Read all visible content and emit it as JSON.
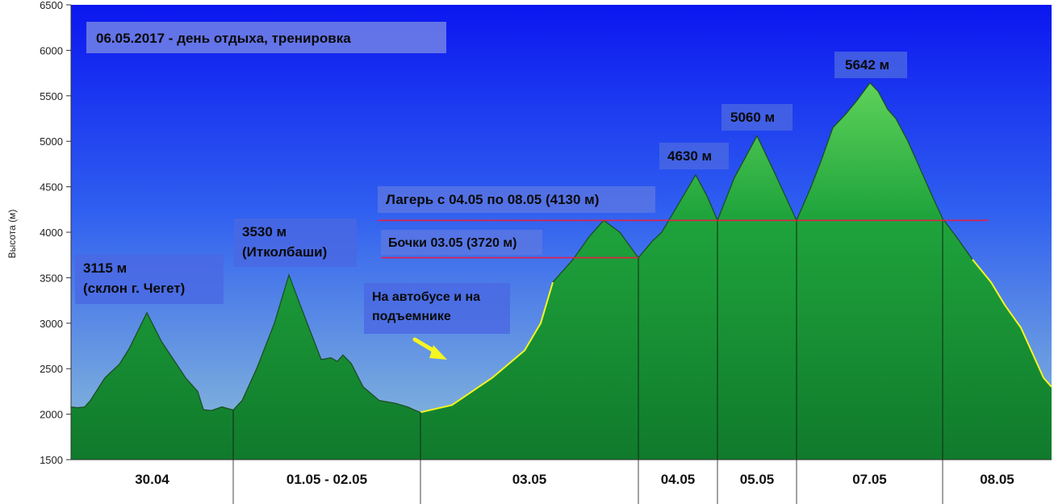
{
  "chart_data": {
    "type": "area",
    "title": "06.05.2017 - день отдыха, тренировка",
    "ylabel": "Высота (м)",
    "ylim": [
      1500,
      6500
    ],
    "yticks": [
      1500,
      2000,
      2500,
      3000,
      3500,
      4000,
      4500,
      5000,
      5500,
      6000,
      6500
    ],
    "grid": false,
    "segments": [
      {
        "label": "30.04"
      },
      {
        "label": "01.05 - 02.05"
      },
      {
        "label": "03.05"
      },
      {
        "label": "04.05"
      },
      {
        "label": "05.05"
      },
      {
        "label": "07.05"
      },
      {
        "label": "08.05"
      }
    ],
    "profile_altitudes": [
      2080,
      2070,
      2080,
      2150,
      2400,
      2550,
      2720,
      3115,
      2800,
      2600,
      2400,
      2250,
      2050,
      2040,
      2080,
      2045,
      2150,
      2500,
      3000,
      3530,
      3200,
      2900,
      2600,
      2620,
      2580,
      2650,
      2560,
      2300,
      2150,
      2120,
      2080,
      2040,
      2020,
      2100,
      2400,
      2700,
      3000,
      3450,
      3700,
      3950,
      4130,
      4000,
      3720,
      3900,
      4000,
      4300,
      4630,
      4400,
      4130,
      4600,
      5060,
      4650,
      4130,
      4500,
      4800,
      5150,
      5300,
      5450,
      5642,
      5550,
      5350,
      5250,
      5000,
      4700,
      4400,
      4150,
      3950,
      3700,
      3450,
      3200,
      2950,
      2400,
      2300
    ],
    "annotations": [
      {
        "lines": [
          "3115 м",
          "(склон г. Чегет)"
        ]
      },
      {
        "lines": [
          "3530 м",
          "(Итколбаши)"
        ]
      },
      {
        "lines": [
          "На автобусе и на",
          "подъемнике"
        ]
      },
      {
        "lines": [
          "4630 м"
        ]
      },
      {
        "lines": [
          "5060 м"
        ]
      },
      {
        "lines": [
          "5642 м"
        ]
      }
    ],
    "reference_lines": [
      {
        "label": "Лагерь с 04.05 по 08.05 (4130 м)",
        "y": 4130
      },
      {
        "label": "Бочки 03.05 (3720 м)",
        "y": 3720
      }
    ]
  }
}
